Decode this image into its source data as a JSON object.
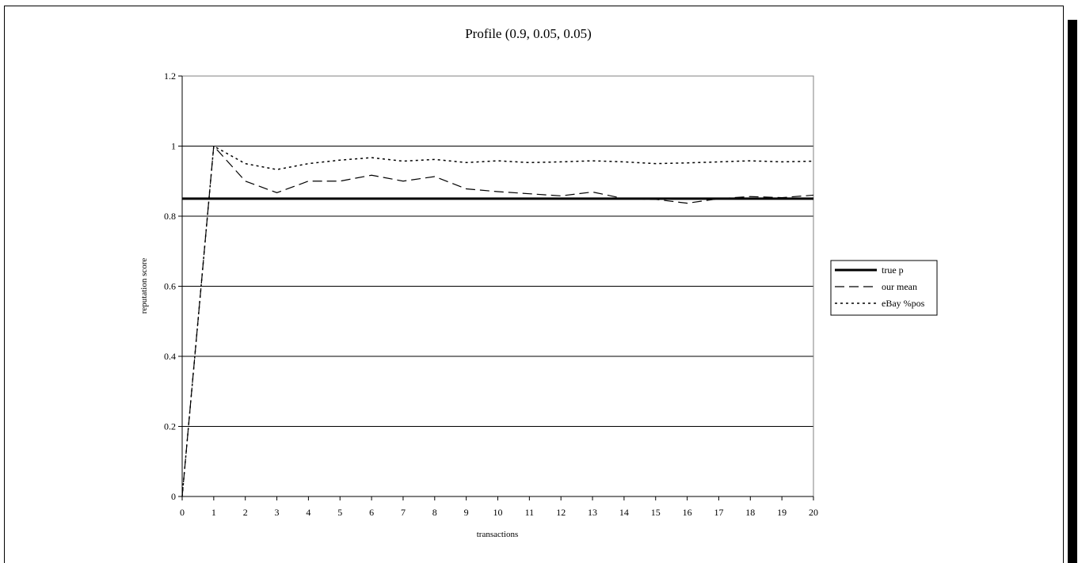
{
  "chart_data": {
    "type": "line",
    "title": "Profile (0.9, 0.05, 0.05)",
    "xlabel": "transactions",
    "ylabel": "reputation score",
    "xlim": [
      0,
      20
    ],
    "ylim": [
      0,
      1.2
    ],
    "x_ticks": [
      0,
      1,
      2,
      3,
      4,
      5,
      6,
      7,
      8,
      9,
      10,
      11,
      12,
      13,
      14,
      15,
      16,
      17,
      18,
      19,
      20
    ],
    "y_ticks": [
      0,
      0.2,
      0.4,
      0.6,
      0.8,
      1,
      1.2
    ],
    "y_tick_labels": [
      "0",
      "0.2",
      "0.4",
      "0.6",
      "0.8",
      "1",
      "1.2"
    ],
    "grid": "horizontal",
    "legend_position": "right",
    "x": [
      0,
      1,
      2,
      3,
      4,
      5,
      6,
      7,
      8,
      9,
      10,
      11,
      12,
      13,
      14,
      15,
      16,
      17,
      18,
      19,
      20
    ],
    "series": [
      {
        "name": "true p",
        "style": "solid-thick",
        "color": "#000000",
        "values": [
          0.85,
          0.85,
          0.85,
          0.85,
          0.85,
          0.85,
          0.85,
          0.85,
          0.85,
          0.85,
          0.85,
          0.85,
          0.85,
          0.85,
          0.85,
          0.85,
          0.85,
          0.85,
          0.85,
          0.85,
          0.85
        ]
      },
      {
        "name": "our mean",
        "style": "dashed",
        "color": "#000000",
        "values": [
          0,
          1.0,
          0.9,
          0.867,
          0.9,
          0.9,
          0.917,
          0.9,
          0.913,
          0.878,
          0.87,
          0.864,
          0.858,
          0.869,
          0.85,
          0.848,
          0.837,
          0.85,
          0.856,
          0.853,
          0.86
        ]
      },
      {
        "name": "eBay %pos",
        "style": "dotted",
        "color": "#000000",
        "values": [
          0,
          1.0,
          0.95,
          0.933,
          0.95,
          0.96,
          0.967,
          0.957,
          0.962,
          0.953,
          0.958,
          0.953,
          0.955,
          0.958,
          0.955,
          0.95,
          0.952,
          0.955,
          0.958,
          0.955,
          0.957
        ]
      }
    ]
  }
}
